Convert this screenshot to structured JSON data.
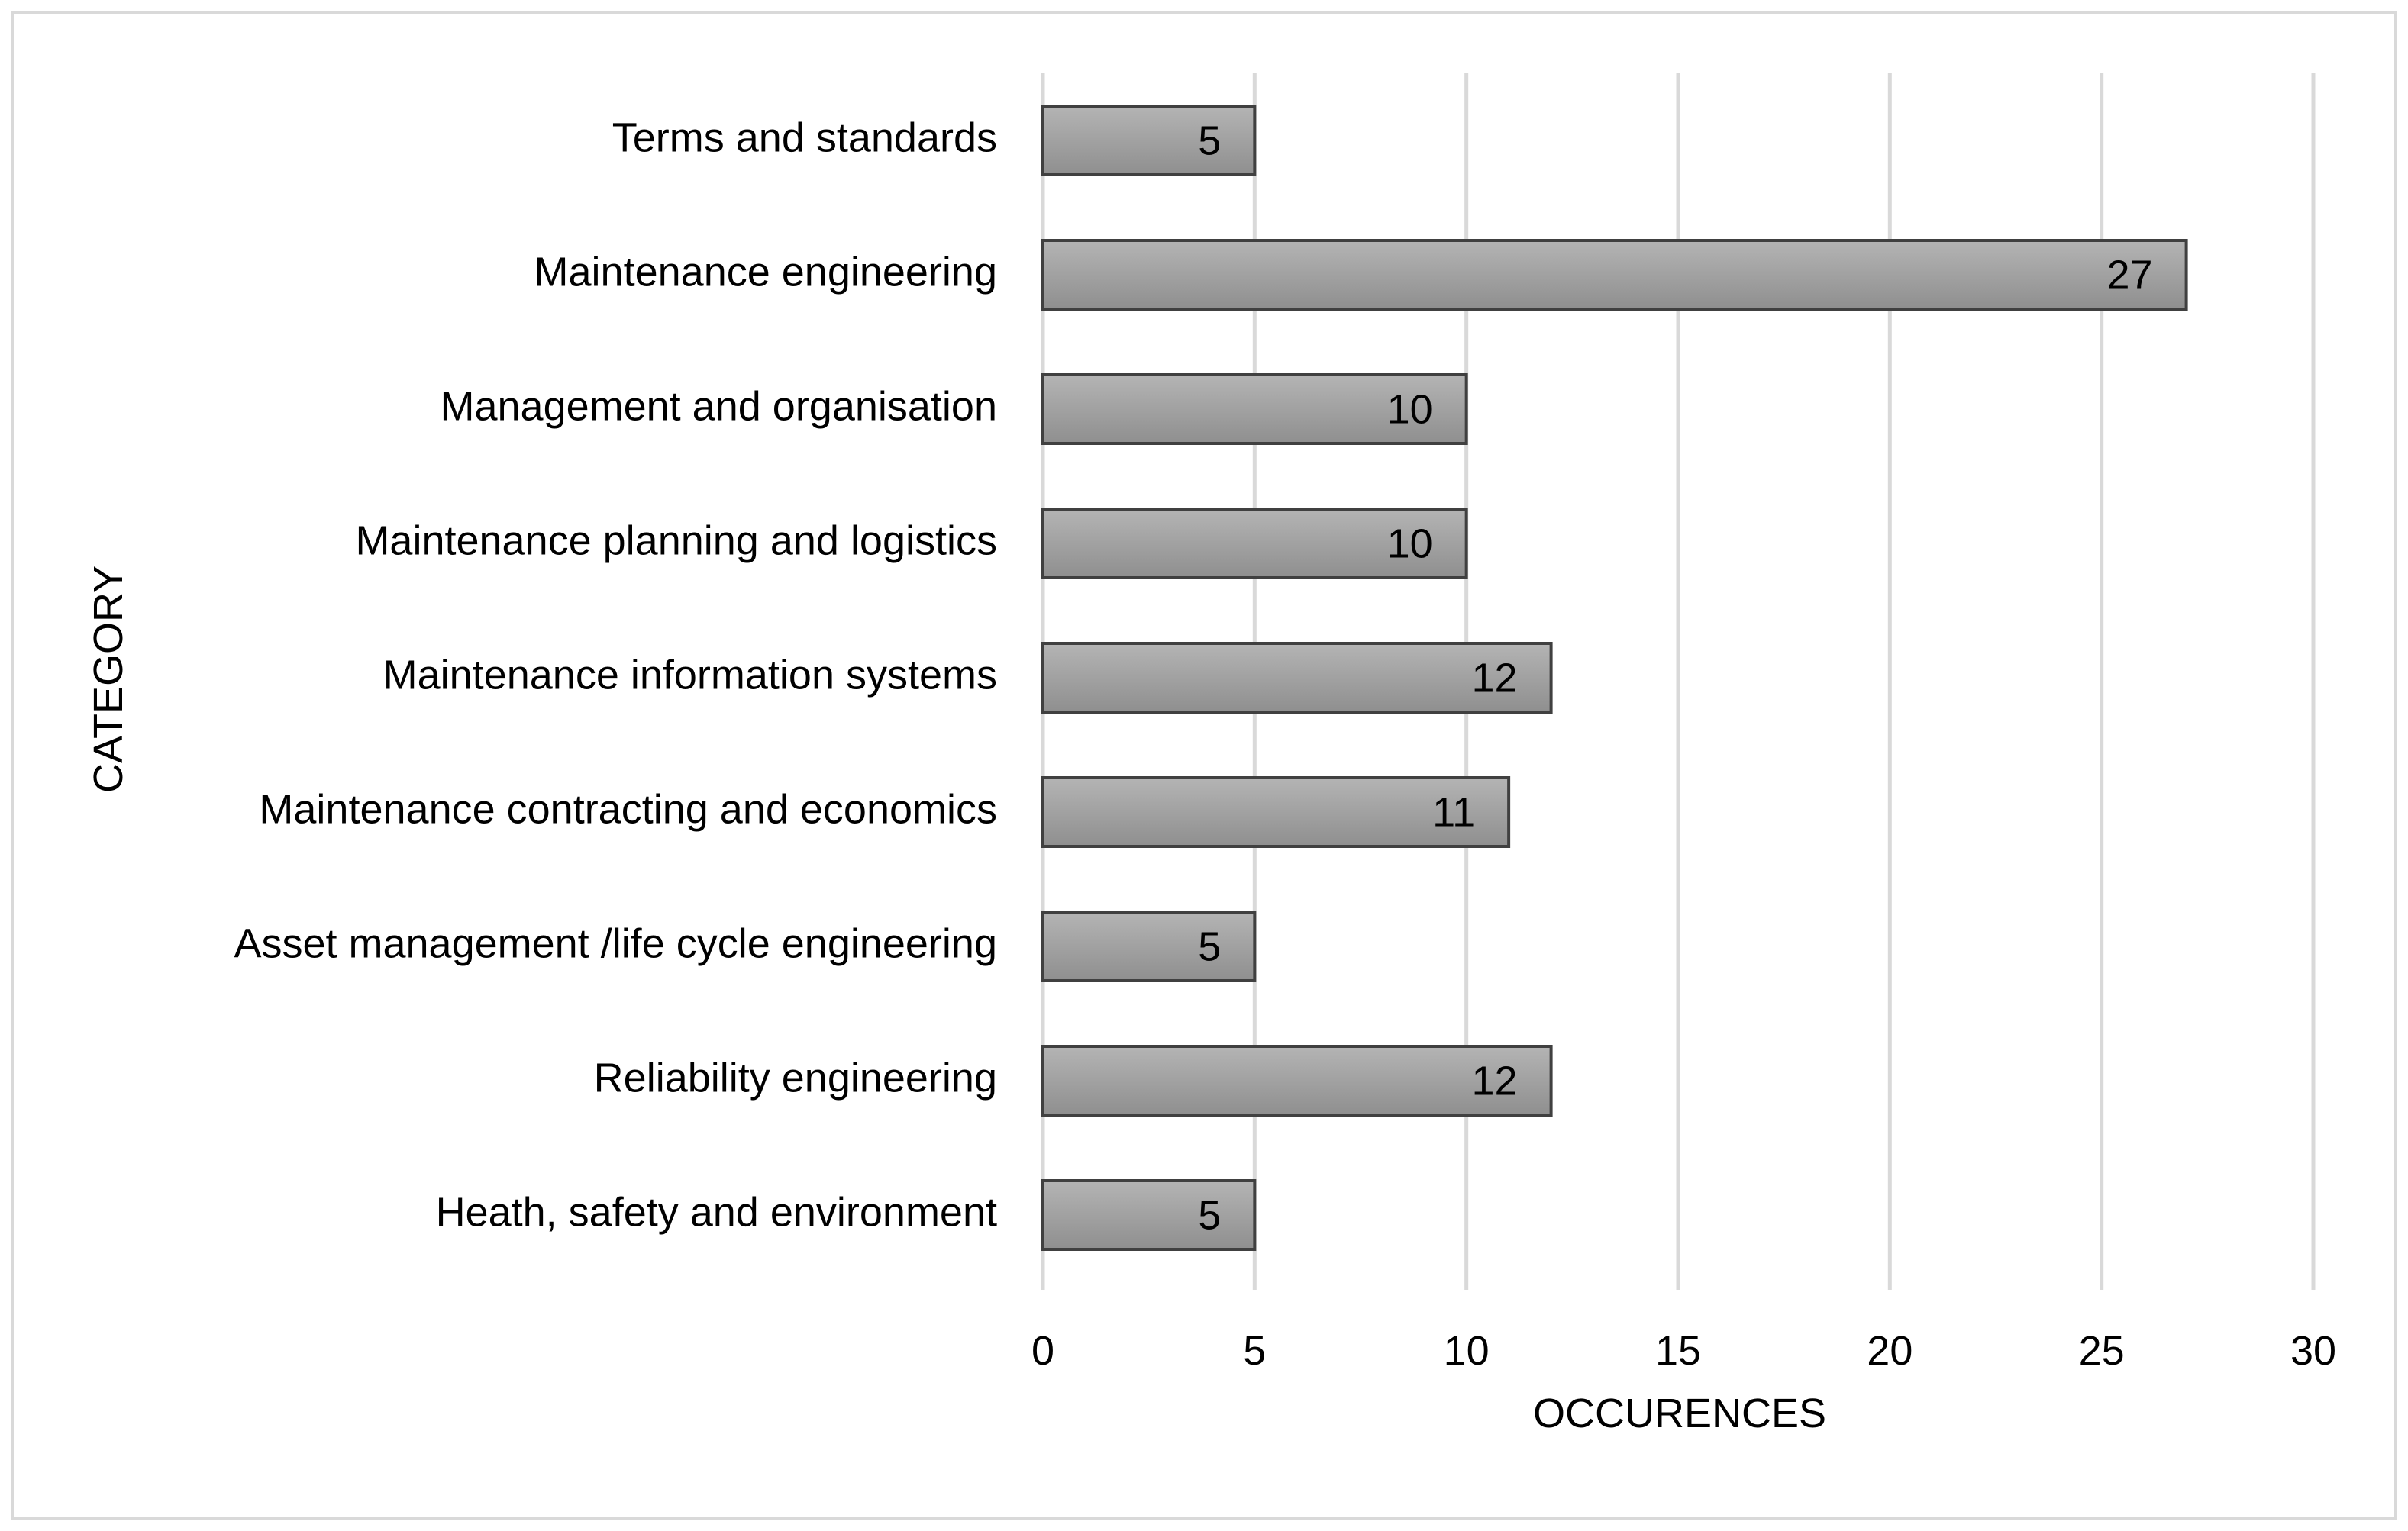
{
  "chart_data": {
    "type": "bar",
    "orientation": "horizontal",
    "title": "",
    "xlabel": "OCCURENCES",
    "ylabel": "CATEGORY",
    "xlim": [
      0,
      30
    ],
    "xticks": [
      "0",
      "5",
      "10",
      "15",
      "20",
      "25",
      "30"
    ],
    "grid": true,
    "categories": [
      "Terms and standards",
      "Maintenance engineering",
      "Management and organisation",
      "Maintenance planning and logistics",
      "Maintenance information systems",
      "Maintenance contracting and economics",
      "Asset management /life cycle engineering",
      "Reliability engineering",
      "Heath, safety and environment"
    ],
    "values": [
      5,
      27,
      10,
      10,
      12,
      11,
      5,
      12,
      5
    ],
    "data_labels": [
      "5",
      "27",
      "10",
      "10",
      "12",
      "11",
      "5",
      "12",
      "5"
    ],
    "colors": {
      "bar_fill_light": "#b4b4b4",
      "bar_fill_dark": "#8f8f8f",
      "bar_stroke": "#404040",
      "gridline": "#d9d9d9",
      "frame": "#d9d9d9"
    }
  }
}
